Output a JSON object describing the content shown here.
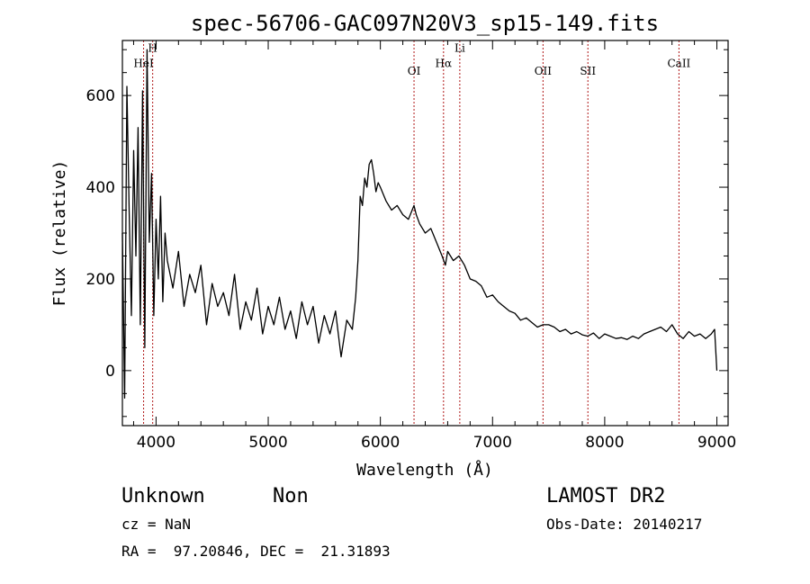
{
  "chart_data": {
    "type": "line",
    "title": "spec-56706-GAC097N20V3_sp15-149.fits",
    "xlabel": "Wavelength (Å)",
    "ylabel": "Flux (relative)",
    "xlim": [
      3700,
      9100
    ],
    "ylim": [
      -120,
      720
    ],
    "x_ticks": [
      4000,
      5000,
      6000,
      7000,
      8000,
      9000
    ],
    "y_ticks": [
      0,
      200,
      400,
      600
    ],
    "x_minor_step": 200,
    "y_minor_step": 50,
    "grid": false,
    "spectral_lines": [
      {
        "name": "HeI",
        "wavelength": 3889,
        "label_row": 3
      },
      {
        "name": "H",
        "wavelength": 3970,
        "label_row": 1
      },
      {
        "name": "OI",
        "wavelength": 6300,
        "label_row": 4
      },
      {
        "name": "Hα",
        "wavelength": 6563,
        "label_row": 3
      },
      {
        "name": "Li",
        "wavelength": 6708,
        "label_row": 1
      },
      {
        "name": "OII",
        "wavelength": 7450,
        "label_row": 4
      },
      {
        "name": "SII",
        "wavelength": 7850,
        "label_row": 4
      },
      {
        "name": "CaII",
        "wavelength": 8662,
        "label_row": 3
      }
    ],
    "series": [
      {
        "name": "flux",
        "x": [
          3700,
          3720,
          3740,
          3760,
          3780,
          3800,
          3820,
          3840,
          3860,
          3880,
          3900,
          3920,
          3940,
          3960,
          3980,
          4000,
          4020,
          4040,
          4060,
          4080,
          4100,
          4150,
          4200,
          4250,
          4300,
          4350,
          4400,
          4450,
          4500,
          4550,
          4600,
          4650,
          4700,
          4750,
          4800,
          4850,
          4900,
          4950,
          5000,
          5050,
          5100,
          5150,
          5200,
          5250,
          5300,
          5350,
          5400,
          5450,
          5500,
          5550,
          5600,
          5650,
          5700,
          5750,
          5780,
          5800,
          5820,
          5840,
          5860,
          5880,
          5900,
          5920,
          5940,
          5960,
          5980,
          6000,
          6050,
          6100,
          6150,
          6200,
          6250,
          6300,
          6320,
          6350,
          6400,
          6450,
          6500,
          6550,
          6580,
          6600,
          6650,
          6700,
          6750,
          6800,
          6850,
          6900,
          6950,
          7000,
          7050,
          7100,
          7150,
          7200,
          7250,
          7300,
          7350,
          7400,
          7450,
          7500,
          7550,
          7600,
          7650,
          7700,
          7750,
          7800,
          7850,
          7900,
          7950,
          8000,
          8050,
          8100,
          8150,
          8200,
          8250,
          8300,
          8350,
          8400,
          8450,
          8500,
          8550,
          8600,
          8650,
          8700,
          8750,
          8800,
          8850,
          8900,
          8950,
          8980,
          9000
        ],
        "y": [
          300,
          -60,
          620,
          350,
          120,
          480,
          250,
          530,
          100,
          610,
          50,
          700,
          280,
          430,
          120,
          330,
          200,
          380,
          150,
          300,
          240,
          180,
          260,
          140,
          210,
          170,
          230,
          100,
          190,
          140,
          170,
          120,
          210,
          90,
          150,
          110,
          180,
          80,
          140,
          100,
          160,
          90,
          130,
          70,
          150,
          100,
          140,
          60,
          120,
          80,
          130,
          30,
          110,
          90,
          160,
          240,
          380,
          360,
          420,
          400,
          450,
          460,
          430,
          390,
          410,
          400,
          370,
          350,
          360,
          340,
          330,
          360,
          340,
          320,
          300,
          310,
          280,
          250,
          230,
          260,
          240,
          250,
          230,
          200,
          195,
          185,
          160,
          165,
          150,
          140,
          130,
          125,
          110,
          115,
          105,
          95,
          100,
          100,
          95,
          85,
          90,
          80,
          85,
          78,
          75,
          82,
          70,
          80,
          75,
          70,
          72,
          68,
          75,
          70,
          80,
          85,
          90,
          95,
          85,
          100,
          80,
          70,
          85,
          75,
          80,
          70,
          80,
          90,
          0
        ]
      }
    ]
  },
  "footer": {
    "object_class": "Unknown",
    "subclass": "Non",
    "survey": "LAMOST DR2",
    "redshift": "cz = NaN",
    "obs_date": "Obs-Date: 20140217",
    "coords": "RA =  97.20846, DEC =  21.31893"
  }
}
